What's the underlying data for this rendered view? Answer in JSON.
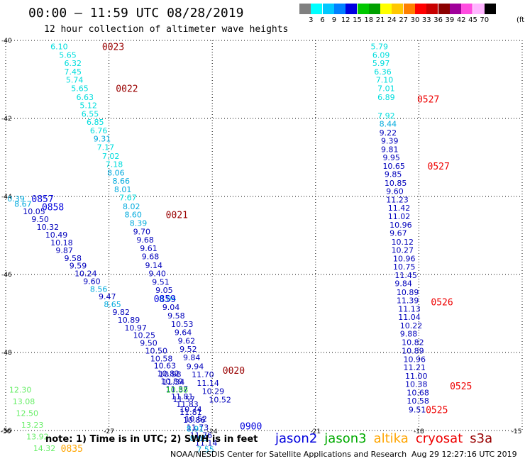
{
  "header": {
    "title": "00:00 — 11:59 UTC 08/28/2019",
    "subtitle": "12 hour collection of altimeter wave heights"
  },
  "legend": {
    "colors": [
      "#808080",
      "#00ffff",
      "#00c8ff",
      "#0080ff",
      "#0000e0",
      "#00c800",
      "#00a000",
      "#ffff00",
      "#ffc800",
      "#ff8000",
      "#ff0000",
      "#c80000",
      "#8b0000",
      "#a0009a",
      "#ff4ce0",
      "#ffb4ff",
      "#000000"
    ],
    "labels": [
      "3",
      "6",
      "9",
      "12",
      "15",
      "18",
      "21",
      "24",
      "27",
      "30",
      "33",
      "36",
      "39",
      "42",
      "45",
      "70"
    ],
    "unit": "(ft)"
  },
  "footer": {
    "note": "note:  1) Time is in UTC;  2) SWH is in feet",
    "satellites": [
      {
        "name": "jason2",
        "color": "#0000dd"
      },
      {
        "name": "jason3",
        "color": "#00aa00"
      },
      {
        "name": "altika",
        "color": "#ffa500"
      },
      {
        "name": "cryosat",
        "color": "#ee0000"
      },
      {
        "name": "s3a",
        "color": "#990000"
      }
    ],
    "credit": "NOAA/NESDIS Center for Satellite Applications and Research",
    "timestamp": "Aug 29 12:27:16 UTC 2019"
  },
  "chart_data": {
    "type": "scatter",
    "xlim": [
      -30,
      -15
    ],
    "ylim": [
      -50,
      -40
    ],
    "x_ticks": [
      "-30",
      "-27",
      "-24",
      "-21",
      "-18",
      "-15"
    ],
    "y_ticks": [
      "-40",
      "-42",
      "-44",
      "-46",
      "-48",
      "-50"
    ],
    "grid": true,
    "colors": {
      "c3": "#808080",
      "c6": "#00dddd",
      "c9": "#00aadd",
      "c12": "#0000bb",
      "c15": "#0000dd",
      "c18": "#22cc22",
      "c21": "#66ee66",
      "jason2": "#0000dd",
      "jason3": "#00aa00",
      "altika": "#ffa500",
      "cryosat": "#ee0000",
      "s3a": "#990000"
    },
    "tracks": [
      {
        "name": "track-s3a-0023",
        "points": [
          [
            "6.10",
            -28.7,
            -40.15,
            "c6"
          ],
          [
            "5.65",
            -28.45,
            -40.37,
            "c6"
          ],
          [
            "6.32",
            -28.3,
            -40.58,
            "c6"
          ],
          [
            "7.45",
            -28.3,
            -40.8,
            "c6"
          ],
          [
            "5.74",
            -28.25,
            -41.01,
            "c6"
          ],
          [
            "5.65",
            -28.1,
            -41.23,
            "c6"
          ],
          [
            "6.63",
            -27.95,
            -41.45,
            "c6"
          ],
          [
            "5.12",
            -27.85,
            -41.66,
            "c6"
          ],
          [
            "6.55",
            -27.8,
            -41.88,
            "c6"
          ],
          [
            "6.85",
            -27.65,
            -42.09,
            "c6"
          ],
          [
            "6.76",
            -27.55,
            -42.31,
            "c6"
          ],
          [
            "9.31",
            -27.45,
            -42.52,
            "c9"
          ],
          [
            "7.17",
            -27.35,
            -42.74,
            "c6"
          ],
          [
            "7.02",
            -27.2,
            -42.96,
            "c6"
          ],
          [
            "7.18",
            -27.1,
            -43.17,
            "c6"
          ],
          [
            "8.06",
            -27.05,
            -43.39,
            "c9"
          ],
          [
            "8.66",
            -26.9,
            -43.6,
            "c9"
          ],
          [
            "8.01",
            -26.85,
            -43.82,
            "c9"
          ],
          [
            "7.67",
            -26.7,
            -44.03,
            "c6"
          ],
          [
            "8.02",
            -26.6,
            -44.25,
            "c9"
          ],
          [
            "8.60",
            -26.55,
            -44.46,
            "c9"
          ],
          [
            "8.39",
            -26.4,
            -44.68,
            "c9"
          ],
          [
            "9.70",
            -26.3,
            -44.9,
            "c12"
          ],
          [
            "9.68",
            -26.2,
            -45.11,
            "c12"
          ],
          [
            "9.61",
            -26.1,
            -45.33,
            "c12"
          ],
          [
            "9.68",
            -26.05,
            -45.54,
            "c12"
          ],
          [
            "9.14",
            -25.95,
            -45.76,
            "c12"
          ],
          [
            "9.40",
            -25.85,
            -45.97,
            "c12"
          ],
          [
            "9.51",
            -25.75,
            -46.19,
            "c12"
          ],
          [
            "9.05",
            -25.65,
            -46.4,
            "c12"
          ],
          [
            "8.04",
            -25.55,
            -46.62,
            "c9"
          ],
          [
            "9.04",
            -25.45,
            -46.84,
            "c12"
          ],
          [
            "9.58",
            -25.3,
            -47.05,
            "c12"
          ],
          [
            "10.53",
            -25.2,
            -47.27,
            "c12"
          ],
          [
            "9.64",
            -25.1,
            -47.48,
            "c12"
          ],
          [
            "9.62",
            -25.0,
            -47.7,
            "c12"
          ],
          [
            "9.52",
            -24.95,
            -47.91,
            "c12"
          ],
          [
            "9.84",
            -24.85,
            -48.13,
            "c12"
          ],
          [
            "9.94",
            -24.75,
            -48.35,
            "c12"
          ],
          [
            "11.70",
            -24.6,
            -48.56,
            "c12"
          ],
          [
            "11.14",
            -24.45,
            -48.78,
            "c12"
          ],
          [
            "10.29",
            -24.3,
            -48.99,
            "c12"
          ],
          [
            "10.52",
            -24.1,
            -49.21,
            "c12"
          ]
        ]
      },
      {
        "name": "track-jason2-0857",
        "points": [
          [
            "0.39",
            -29.95,
            -44.05,
            "c9"
          ],
          [
            "8.67",
            -29.75,
            -44.19,
            "c9"
          ],
          [
            "10.05",
            -29.5,
            -44.38,
            "c12"
          ],
          [
            "9.50",
            -29.25,
            -44.58,
            "c12"
          ],
          [
            "10.32",
            -29.1,
            -44.78,
            "c12"
          ],
          [
            "10.49",
            -28.85,
            -44.98,
            "c12"
          ],
          [
            "10.18",
            -28.7,
            -45.18,
            "c12"
          ],
          [
            "9.87",
            -28.55,
            -45.38,
            "c12"
          ],
          [
            "9.58",
            -28.3,
            -45.58,
            "c12"
          ],
          [
            "9.59",
            -28.15,
            -45.77,
            "c12"
          ],
          [
            "10.24",
            -28.0,
            -45.97,
            "c12"
          ],
          [
            "9.60",
            -27.75,
            -46.17,
            "c12"
          ],
          [
            "8.56",
            -27.55,
            -46.37,
            "c9"
          ],
          [
            "9.47",
            -27.3,
            -46.56,
            "c12"
          ],
          [
            "8.65",
            -27.15,
            -46.76,
            "c9"
          ],
          [
            "9.82",
            -26.9,
            -46.96,
            "c12"
          ],
          [
            "10.89",
            -26.75,
            -47.16,
            "c12"
          ],
          [
            "10.97",
            -26.55,
            -47.36,
            "c12"
          ],
          [
            "10.25",
            -26.3,
            -47.55,
            "c12"
          ],
          [
            "9.50",
            -26.1,
            -47.75,
            "c12"
          ],
          [
            "10.50",
            -25.95,
            -47.95,
            "c12"
          ],
          [
            "10.58",
            -25.8,
            -48.15,
            "c12"
          ],
          [
            "10.63",
            -25.7,
            -48.34,
            "c12"
          ],
          [
            "10.82",
            -25.6,
            -48.54,
            "c12"
          ],
          [
            "10.89",
            -25.5,
            -48.74,
            "c12"
          ],
          [
            "11.37",
            -25.35,
            -48.94,
            "c12"
          ],
          [
            "11.81",
            -25.2,
            -49.13,
            "c12"
          ],
          [
            "11.83",
            -25.05,
            -49.33,
            "c12"
          ],
          [
            "11.81",
            -24.95,
            -49.53,
            "c12"
          ],
          [
            "10.86",
            -24.85,
            -49.73,
            "c12"
          ],
          [
            "11.73",
            -24.75,
            -49.92,
            "c12"
          ],
          [
            "11.76",
            -24.65,
            -50.12,
            "c12"
          ],
          [
            "11.14",
            -24.5,
            -50.32,
            "c12"
          ]
        ]
      },
      {
        "name": "track-jason3-0835",
        "points": [
          [
            "12.30",
            -29.9,
            -48.95,
            "c21"
          ],
          [
            "13.08",
            -29.8,
            -49.25,
            "c21"
          ],
          [
            "12.50",
            -29.7,
            -49.55,
            "c21"
          ],
          [
            "13.23",
            -29.55,
            -49.85,
            "c21"
          ],
          [
            "13.92",
            -29.4,
            -50.15,
            "c21"
          ],
          [
            "14.32",
            -29.2,
            -50.45,
            "c21"
          ]
        ]
      },
      {
        "name": "track-s3a-0020",
        "points": [
          [
            "10.98",
            -25.55,
            -48.55,
            "c12"
          ],
          [
            "11.34",
            -25.45,
            -48.75,
            "c12"
          ],
          [
            "10.88",
            -25.35,
            -48.95,
            "c18"
          ],
          [
            "11.57",
            -25.15,
            -49.2,
            "c12"
          ],
          [
            "10.74",
            -24.95,
            -49.45,
            "c12"
          ],
          [
            "10.52",
            -24.8,
            -49.7,
            "c12"
          ],
          [
            "8.91",
            -24.75,
            -49.95,
            "c9"
          ],
          [
            "8.06",
            -24.65,
            -50.2,
            "c9"
          ],
          [
            "7.55",
            -24.45,
            -50.48,
            "c9"
          ]
        ]
      },
      {
        "name": "track-east-0527",
        "points": [
          [
            "5.79",
            -19.4,
            -40.15,
            "c6"
          ],
          [
            "6.09",
            -19.35,
            -40.37,
            "c6"
          ],
          [
            "5.97",
            -19.35,
            -40.58,
            "c6"
          ],
          [
            "6.36",
            -19.3,
            -40.8,
            "c6"
          ],
          [
            "7.10",
            -19.25,
            -41.01,
            "c6"
          ],
          [
            "7.01",
            -19.2,
            -41.23,
            "c6"
          ],
          [
            "6.89",
            -19.2,
            -41.45,
            "c6"
          ],
          [
            "7.92",
            -19.2,
            -41.93,
            "c6"
          ],
          [
            "8.44",
            -19.15,
            -42.14,
            "c9"
          ],
          [
            "9.22",
            -19.15,
            -42.36,
            "c12"
          ],
          [
            "9.39",
            -19.1,
            -42.57,
            "c12"
          ],
          [
            "9.81",
            -19.1,
            -42.79,
            "c12"
          ],
          [
            "9.95",
            -19.05,
            -43.0,
            "c12"
          ],
          [
            "10.65",
            -19.05,
            -43.22,
            "c12"
          ],
          [
            "9.85",
            -19.0,
            -43.43,
            "c12"
          ],
          [
            "10.85",
            -19.0,
            -43.65,
            "c12"
          ],
          [
            "9.60",
            -18.95,
            -43.86,
            "c12"
          ],
          [
            "11.23",
            -18.95,
            -44.08,
            "c12"
          ],
          [
            "11.42",
            -18.9,
            -44.29,
            "c12"
          ],
          [
            "11.02",
            -18.9,
            -44.51,
            "c12"
          ],
          [
            "10.96",
            -18.85,
            -44.73,
            "c12"
          ],
          [
            "9.67",
            -18.85,
            -44.94,
            "c12"
          ],
          [
            "10.12",
            -18.8,
            -45.16,
            "c12"
          ],
          [
            "10.27",
            -18.8,
            -45.37,
            "c12"
          ],
          [
            "10.96",
            -18.75,
            -45.59,
            "c12"
          ],
          [
            "10.75",
            -18.75,
            -45.8,
            "c12"
          ],
          [
            "11.45",
            -18.7,
            -46.02,
            "c12"
          ],
          [
            "9.84",
            -18.7,
            -46.23,
            "c12"
          ],
          [
            "10.89",
            -18.65,
            -46.45,
            "c12"
          ],
          [
            "11.39",
            -18.65,
            -46.66,
            "c12"
          ],
          [
            "11.13",
            -18.6,
            -46.88,
            "c12"
          ],
          [
            "11.04",
            -18.6,
            -47.09,
            "c12"
          ],
          [
            "10.22",
            -18.55,
            -47.31,
            "c12"
          ],
          [
            "9.88",
            -18.55,
            -47.52,
            "c12"
          ],
          [
            "10.82",
            -18.5,
            -47.74,
            "c12"
          ],
          [
            "10.89",
            -18.5,
            -47.95,
            "c12"
          ],
          [
            "10.96",
            -18.45,
            -48.17,
            "c12"
          ],
          [
            "11.21",
            -18.45,
            -48.38,
            "c12"
          ],
          [
            "11.00",
            -18.4,
            -48.6,
            "c12"
          ],
          [
            "10.38",
            -18.4,
            -48.81,
            "c12"
          ],
          [
            "10.68",
            -18.35,
            -49.03,
            "c12"
          ],
          [
            "10.58",
            -18.35,
            -49.24,
            "c12"
          ],
          [
            "9.51",
            -18.3,
            -49.46,
            "c12"
          ]
        ]
      }
    ],
    "time_labels": [
      {
        "text": "0023",
        "x": -27.2,
        "y": -40.15,
        "sat": "s3a"
      },
      {
        "text": "0022",
        "x": -26.8,
        "y": -41.23,
        "sat": "s3a"
      },
      {
        "text": "0857",
        "x": -29.25,
        "y": -44.05,
        "sat": "jason2"
      },
      {
        "text": "0858",
        "x": -28.95,
        "y": -44.26,
        "sat": "jason2"
      },
      {
        "text": "0021",
        "x": -25.35,
        "y": -44.46,
        "sat": "s3a"
      },
      {
        "text": "0859",
        "x": -25.7,
        "y": -46.62,
        "sat": "jason2"
      },
      {
        "text": "0020",
        "x": -23.7,
        "y": -48.45,
        "sat": "s3a"
      },
      {
        "text": "0900",
        "x": -23.2,
        "y": -49.88,
        "sat": "jason2"
      },
      {
        "text": "0835",
        "x": -28.4,
        "y": -50.45,
        "sat": "altika"
      },
      {
        "text": "0527",
        "x": -18.05,
        "y": -41.5,
        "sat": "cryosat"
      },
      {
        "text": "0527",
        "x": -17.75,
        "y": -43.22,
        "sat": "cryosat"
      },
      {
        "text": "0526",
        "x": -17.65,
        "y": -46.7,
        "sat": "cryosat"
      },
      {
        "text": "0525",
        "x": -17.1,
        "y": -48.85,
        "sat": "cryosat"
      },
      {
        "text": "0525",
        "x": -17.8,
        "y": -49.46,
        "sat": "cryosat"
      }
    ]
  }
}
